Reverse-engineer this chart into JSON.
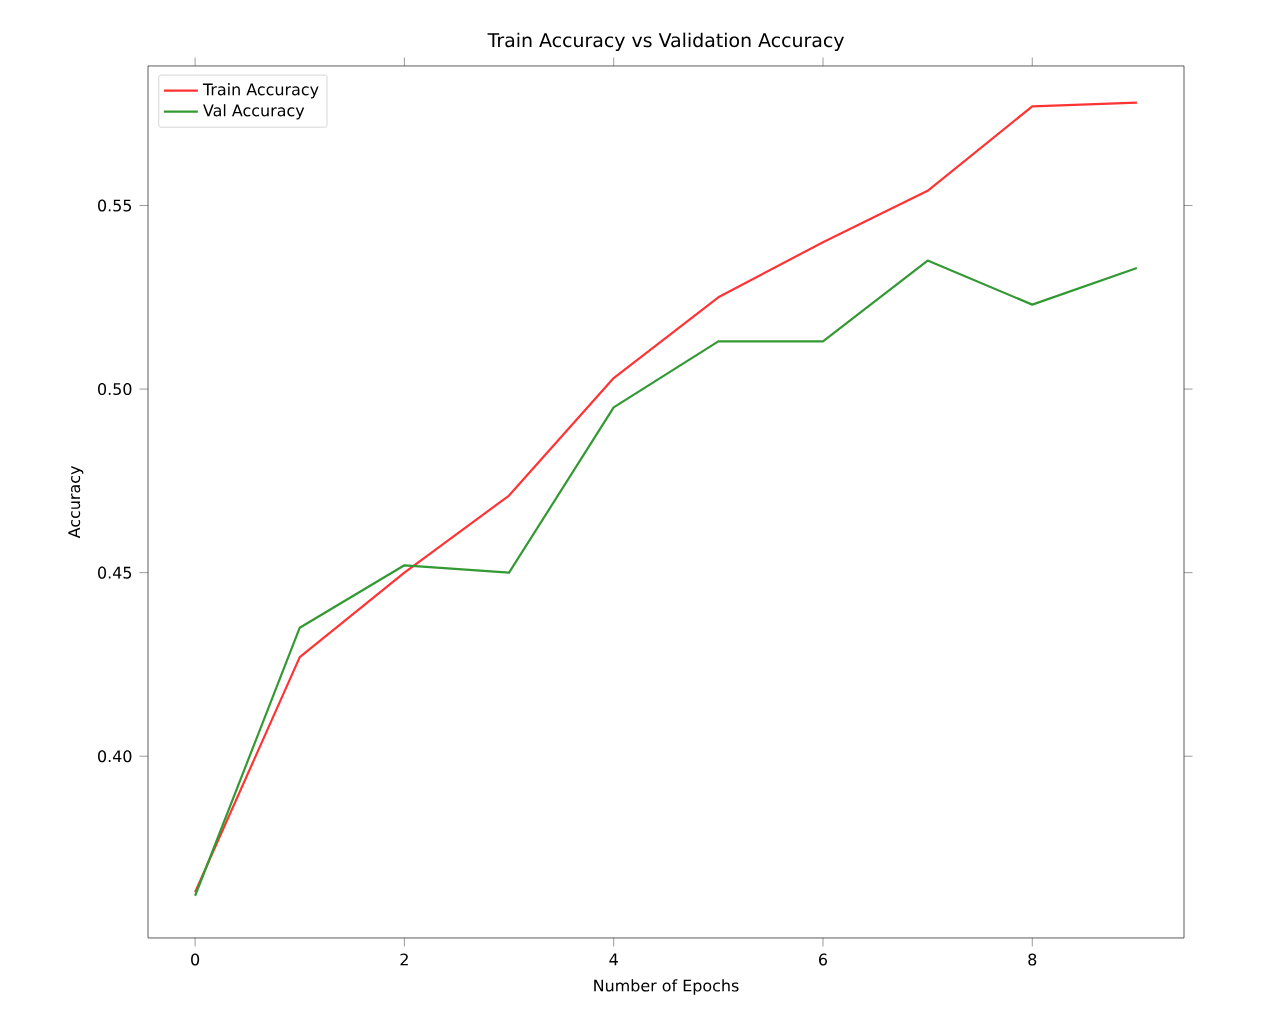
{
  "chart_data": {
    "type": "line",
    "title": "Train Accuracy vs Validation Accuracy",
    "xlabel": "Number of Epochs",
    "ylabel": "Accuracy",
    "x": [
      0,
      1,
      2,
      3,
      4,
      5,
      6,
      7,
      8,
      9
    ],
    "series": [
      {
        "name": "Train Accuracy",
        "color": "#ff3333",
        "values": [
          0.363,
          0.427,
          0.45,
          0.471,
          0.503,
          0.525,
          0.54,
          0.554,
          0.577,
          0.578
        ]
      },
      {
        "name": "Val Accuracy",
        "color": "#339933",
        "values": [
          0.362,
          0.435,
          0.452,
          0.45,
          0.495,
          0.513,
          0.513,
          0.535,
          0.523,
          0.533
        ]
      }
    ],
    "xlim": [
      -0.45,
      9.45
    ],
    "ylim": [
      0.3505,
      0.588
    ],
    "xticks": [
      0,
      2,
      4,
      6,
      8
    ],
    "yticks": [
      {
        "value": 0.4,
        "label": "0.40"
      },
      {
        "value": 0.45,
        "label": "0.45"
      },
      {
        "value": 0.5,
        "label": "0.50"
      },
      {
        "value": 0.55,
        "label": "0.55"
      }
    ],
    "legend": "top left",
    "grid": false,
    "marker": "none",
    "line_style": "solid"
  }
}
